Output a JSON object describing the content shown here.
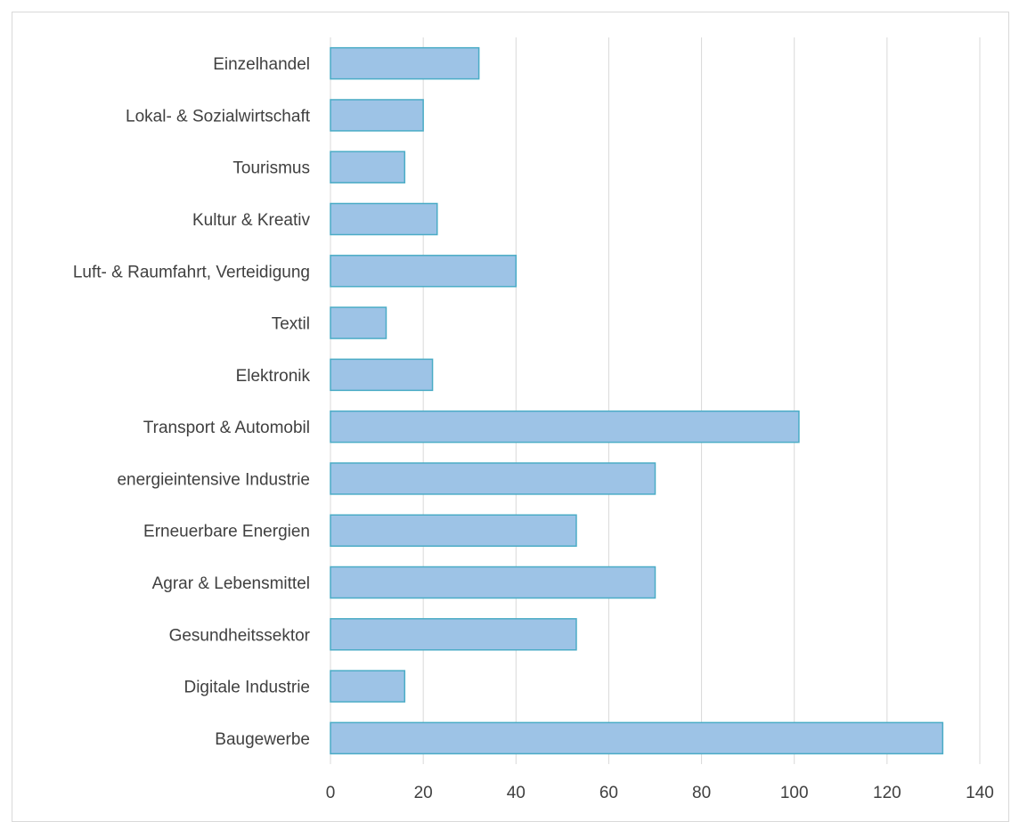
{
  "chart_data": {
    "type": "bar",
    "orientation": "horizontal",
    "categories": [
      "Einzelhandel",
      "Lokal- & Sozialwirtschaft",
      "Tourismus",
      "Kultur & Kreativ",
      "Luft- & Raumfahrt,  Verteidigung",
      "Textil",
      "Elektronik",
      "Transport & Automobil",
      "energieintensive Industrie",
      "Erneuerbare Energien",
      "Agrar & Lebensmittel",
      "Gesundheitssektor",
      "Digitale Industrie",
      "Baugewerbe"
    ],
    "values": [
      32,
      20,
      16,
      23,
      40,
      12,
      22,
      101,
      70,
      53,
      70,
      53,
      16,
      132
    ],
    "xlim": [
      0,
      140
    ],
    "x_ticks": [
      "0",
      "20",
      "40",
      "60",
      "80",
      "100",
      "120",
      "140"
    ],
    "grid": "vertical",
    "legend": "none",
    "title": "",
    "xlabel": "",
    "ylabel": "",
    "colors": {
      "bar_fill": "#9dc3e6",
      "bar_stroke": "#4bacc6",
      "grid": "#d9d9d9",
      "text": "#404040"
    }
  }
}
